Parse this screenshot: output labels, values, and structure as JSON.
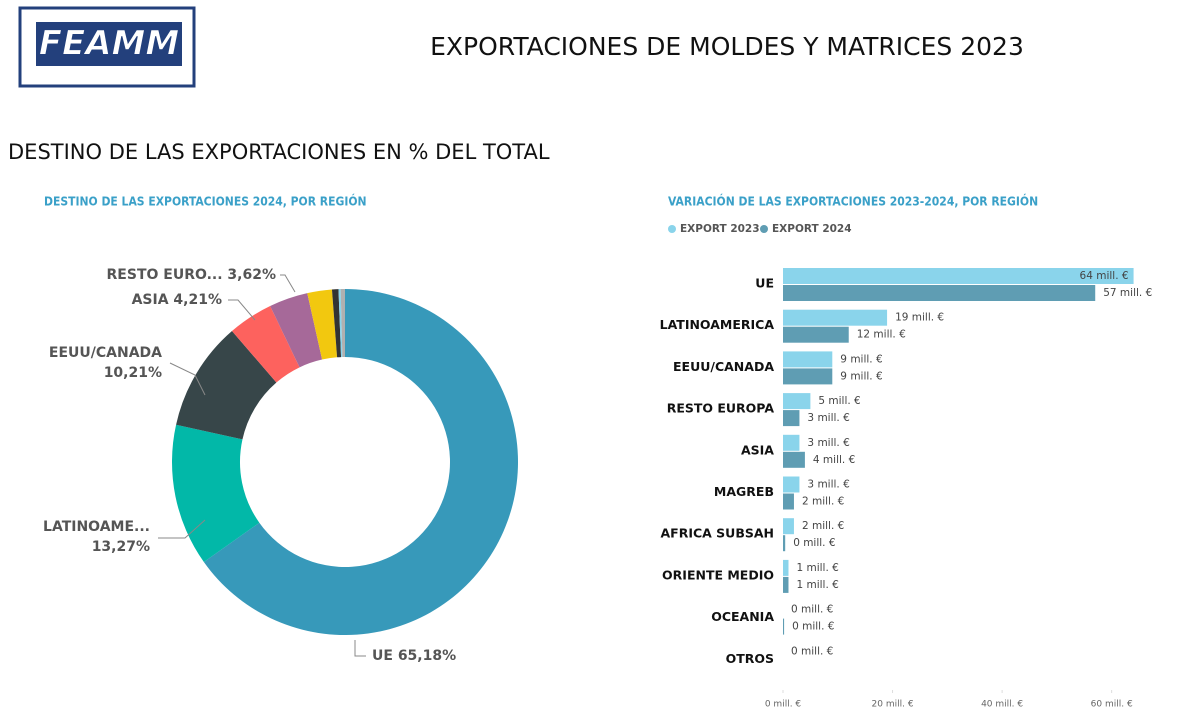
{
  "header": {
    "logo": "FEAMM",
    "title": "EXPORTACIONES DE MOLDES Y MATRICES 2023",
    "section": "DESTINO DE LAS EXPORTACIONES EN % DEL TOTAL"
  },
  "chart_data": [
    {
      "type": "donut",
      "title": "DESTINO DE LAS EXPORTACIONES 2024, POR REGIÓN",
      "categories": [
        "UE",
        "LATINOAME...",
        "EEUU/CANADA",
        "ASIA",
        "RESTO EURO...",
        null,
        null,
        null,
        null
      ],
      "values": [
        65.18,
        13.27,
        10.21,
        4.21,
        3.62,
        2.3,
        0.6,
        0.2,
        0.4
      ],
      "value_labels": [
        "65,18%",
        "13,27%",
        "10,21%",
        "4,21%",
        "3,62%",
        null,
        null,
        null,
        null
      ],
      "colors": [
        "#3799ba",
        "#02b8a8",
        "#374649",
        "#fd625e",
        "#a66999",
        "#f2c80f",
        "#333333",
        "#8ad4eb",
        "#b0b0b0"
      ]
    },
    {
      "type": "hbar",
      "title": "VARIACIÓN DE LAS EXPORTACIONES 2023-2024, POR REGIÓN",
      "categories": [
        "UE",
        "LATINOAMERICA",
        "EEUU/CANADA",
        "RESTO EUROPA",
        "ASIA",
        "MAGREB",
        "AFRICA SUBSAH",
        "ORIENTE MEDIO",
        "OCEANIA",
        "OTROS"
      ],
      "series": [
        {
          "name": "EXPORT 2023",
          "color": "#8ad4eb",
          "values": [
            64,
            19,
            9,
            5,
            3,
            3,
            2,
            1,
            0,
            0
          ],
          "value_labels": [
            "64 mill. €",
            "19 mill. €",
            "9 mill. €",
            "5 mill. €",
            "3 mill. €",
            "3 mill. €",
            "2 mill. €",
            "1 mill. €",
            "0 mill. €",
            "0 mill. €"
          ]
        },
        {
          "name": "EXPORT 2024",
          "color": "#5f9db3",
          "values": [
            57,
            12,
            9,
            3,
            4,
            2,
            0.4,
            1,
            0.2,
            null
          ],
          "value_labels": [
            "57 mill. €",
            "12 mill. €",
            "9 mill. €",
            "3 mill. €",
            "4 mill. €",
            "2 mill. €",
            "0 mill. €",
            "1 mill. €",
            "0 mill. €",
            null
          ]
        }
      ],
      "xlim": [
        0,
        67
      ],
      "xticks": [
        {
          "value": 0,
          "label": "0 mill. €"
        },
        {
          "value": 20,
          "label": "20 mill. €"
        },
        {
          "value": 40,
          "label": "40 mill. €"
        },
        {
          "value": 60,
          "label": "60 mill. €"
        }
      ],
      "legend": "top-left"
    }
  ]
}
